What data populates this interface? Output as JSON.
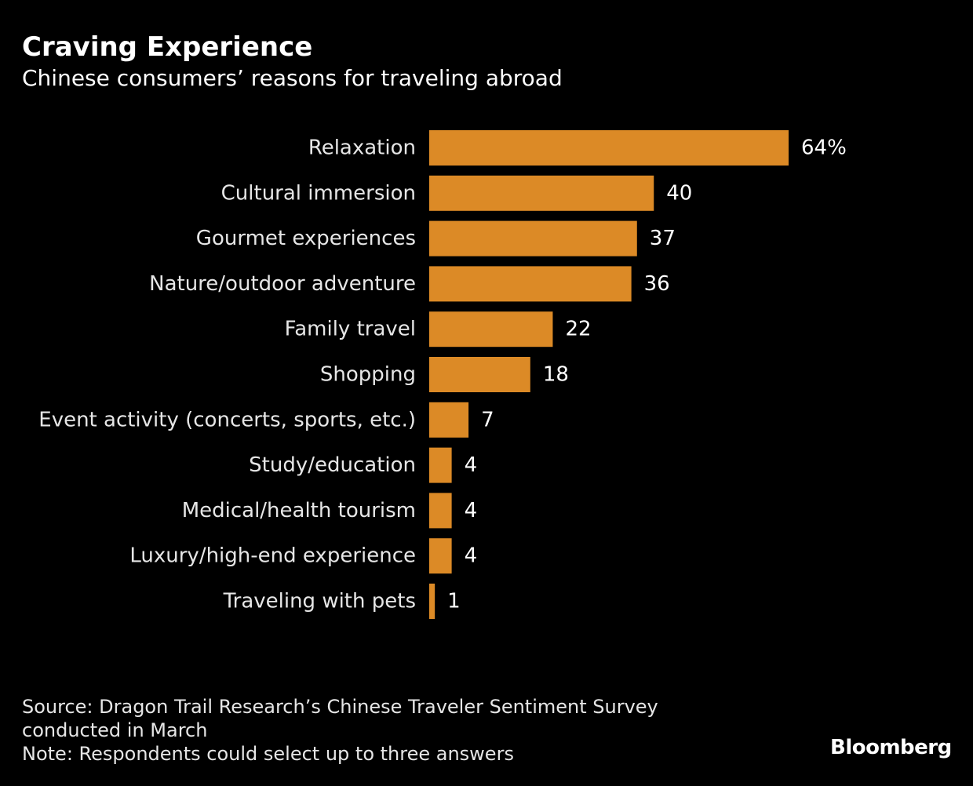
{
  "header": {
    "title": "Craving Experience",
    "subtitle": "Chinese consumers’ reasons for traveling abroad"
  },
  "chart_data": {
    "type": "bar",
    "orientation": "horizontal",
    "title": "Craving Experience",
    "subtitle": "Chinese consumers’ reasons for traveling abroad",
    "categories": [
      "Relaxation",
      "Cultural immersion",
      "Gourmet experiences",
      "Nature/outdoor adventure",
      "Family travel",
      "Shopping",
      "Event activity (concerts, sports, etc.)",
      "Study/education",
      "Medical/health tourism",
      "Luxury/high-end experience",
      "Traveling with pets"
    ],
    "values": [
      64,
      40,
      37,
      36,
      22,
      18,
      7,
      4,
      4,
      4,
      1
    ],
    "value_labels": [
      "64%",
      "40",
      "37",
      "36",
      "22",
      "18",
      "7",
      "4",
      "4",
      "4",
      "1"
    ],
    "unit": "%",
    "xlim": [
      0,
      64
    ],
    "grid": false,
    "legend": "none",
    "bar_color": "#dc8a26"
  },
  "footer": {
    "source_line1": "Source: Dragon Trail Research’s Chinese Traveler Sentiment Survey",
    "source_line2": "conducted in March",
    "note": "Note: Respondents could select up to three answers",
    "brand": "Bloomberg"
  }
}
